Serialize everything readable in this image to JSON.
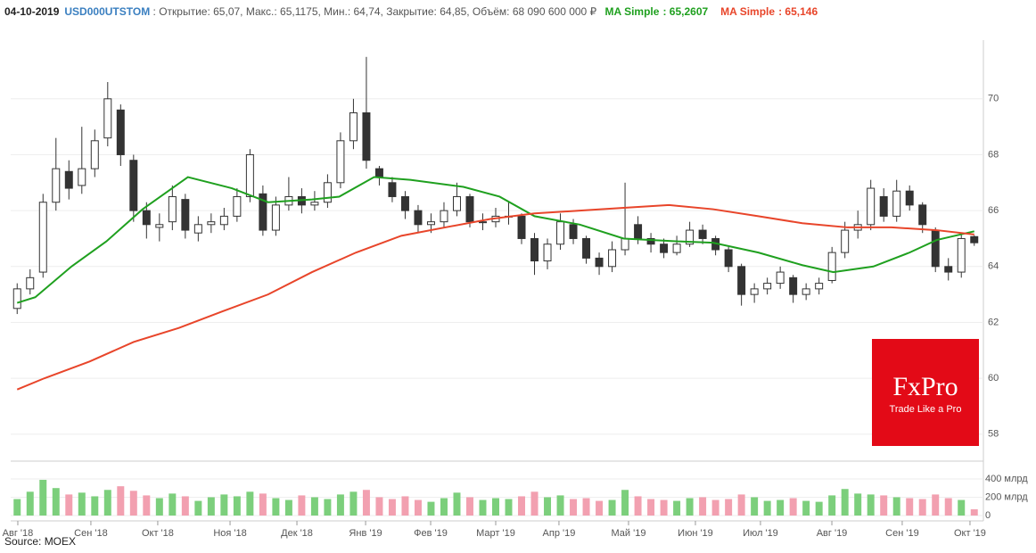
{
  "chart_data": {
    "type": "candlestick",
    "header": {
      "date": "04-10-2019",
      "ticker": "USD000UTSTOM",
      "info": ": Открытие: 65,07, Макс.: 65,1175, Мин.: 64,74, Закрытие: 64,85, Объём: 68 090 600 000 ₽"
    },
    "open": [
      62.5,
      63.2,
      63.8,
      66.3,
      67.4,
      66.9,
      67.5,
      68.6,
      69.6,
      67.8,
      66.0,
      65.4,
      65.6,
      66.4,
      65.2,
      65.5,
      65.5,
      65.8,
      66.5,
      66.6,
      65.3,
      66.2,
      66.5,
      66.2,
      66.3,
      67.0,
      68.5,
      69.5,
      67.5,
      67.0,
      66.5,
      66.0,
      65.5,
      65.6,
      66.0,
      66.5,
      65.6,
      65.6,
      65.8,
      65.8,
      65.0,
      64.2,
      64.8,
      65.5,
      65.0,
      64.3,
      64.0,
      64.6,
      65.5,
      65.0,
      64.8,
      64.5,
      64.8,
      65.3,
      65.0,
      64.6,
      64.0,
      63.0,
      63.2,
      63.4,
      63.6,
      63.0,
      63.2,
      63.5,
      64.5,
      65.3,
      65.5,
      66.5,
      65.8,
      66.7,
      66.2,
      65.3,
      64.0,
      63.8,
      65.07
    ],
    "high": [
      63.4,
      63.9,
      66.6,
      68.6,
      67.8,
      69.0,
      68.9,
      70.6,
      69.8,
      68.0,
      66.3,
      65.9,
      66.9,
      66.6,
      65.8,
      65.9,
      66.1,
      66.8,
      68.2,
      66.9,
      66.5,
      67.2,
      66.8,
      66.7,
      67.3,
      68.8,
      70.0,
      71.5,
      67.6,
      67.2,
      66.7,
      66.2,
      65.9,
      66.3,
      67.0,
      66.6,
      65.9,
      66.1,
      66.3,
      65.9,
      65.2,
      65.0,
      65.9,
      65.7,
      65.1,
      64.5,
      64.9,
      67.0,
      65.8,
      65.2,
      65.0,
      65.1,
      65.6,
      65.5,
      65.1,
      64.7,
      64.1,
      63.4,
      63.6,
      64.0,
      63.7,
      63.4,
      63.6,
      64.7,
      65.6,
      66.0,
      67.1,
      66.8,
      67.1,
      66.9,
      66.3,
      65.4,
      64.3,
      65.2,
      65.1175
    ],
    "low": [
      62.3,
      63.0,
      63.6,
      66.0,
      66.4,
      66.6,
      67.2,
      68.3,
      67.6,
      65.6,
      65.0,
      64.9,
      65.3,
      65.0,
      64.9,
      65.2,
      65.3,
      65.6,
      66.3,
      65.1,
      65.1,
      66.0,
      65.9,
      66.0,
      66.1,
      66.8,
      68.2,
      67.5,
      66.9,
      66.3,
      65.7,
      65.2,
      65.2,
      65.4,
      65.8,
      65.4,
      65.3,
      65.4,
      65.5,
      64.8,
      63.7,
      63.9,
      64.6,
      64.8,
      64.1,
      63.7,
      63.8,
      64.4,
      64.8,
      64.5,
      64.3,
      64.4,
      64.7,
      64.8,
      64.4,
      63.8,
      62.6,
      62.7,
      63.0,
      63.2,
      62.7,
      62.8,
      63.0,
      63.4,
      64.3,
      65.0,
      65.3,
      65.6,
      65.6,
      66.0,
      65.2,
      63.8,
      63.5,
      63.6,
      64.74
    ],
    "close": [
      63.2,
      63.6,
      66.3,
      67.5,
      66.8,
      67.5,
      68.5,
      70.0,
      68.0,
      66.0,
      65.5,
      65.5,
      66.5,
      65.3,
      65.5,
      65.6,
      65.8,
      66.5,
      68.0,
      65.3,
      66.2,
      66.5,
      66.2,
      66.3,
      67.0,
      68.5,
      69.5,
      67.8,
      67.2,
      66.5,
      66.0,
      65.5,
      65.6,
      66.0,
      66.5,
      65.6,
      65.6,
      65.8,
      65.8,
      65.0,
      64.2,
      64.8,
      65.6,
      65.0,
      64.3,
      64.0,
      64.6,
      65.0,
      65.0,
      64.8,
      64.5,
      64.8,
      65.3,
      65.0,
      64.6,
      64.0,
      63.0,
      63.2,
      63.4,
      63.8,
      63.0,
      63.2,
      63.4,
      64.5,
      65.3,
      65.5,
      66.8,
      65.8,
      66.7,
      66.2,
      65.5,
      64.0,
      63.8,
      65.0,
      64.85
    ],
    "volume": [
      180,
      260,
      390,
      300,
      230,
      250,
      210,
      280,
      320,
      270,
      220,
      190,
      240,
      210,
      160,
      200,
      230,
      210,
      260,
      240,
      190,
      170,
      220,
      200,
      180,
      230,
      260,
      280,
      200,
      180,
      210,
      170,
      150,
      190,
      250,
      200,
      170,
      190,
      180,
      210,
      260,
      200,
      220,
      180,
      190,
      160,
      170,
      280,
      210,
      180,
      170,
      160,
      190,
      200,
      170,
      180,
      230,
      200,
      160,
      170,
      190,
      160,
      150,
      220,
      290,
      240,
      230,
      220,
      200,
      190,
      180,
      230,
      190,
      170,
      68.09
    ],
    "xlim": [
      -0.5,
      74.5
    ],
    "xticks": [
      {
        "value": 0.05,
        "label": "Авг '18"
      },
      {
        "value": 5.7,
        "label": "Сен '18"
      },
      {
        "value": 10.87,
        "label": "Окт '18"
      },
      {
        "value": 16.46,
        "label": "Ноя '18"
      },
      {
        "value": 21.63,
        "label": "Дек '18"
      },
      {
        "value": 26.94,
        "label": "Янв '19"
      },
      {
        "value": 31.97,
        "label": "Фев '19"
      },
      {
        "value": 37.0,
        "label": "Март '19"
      },
      {
        "value": 41.89,
        "label": "Апр '19"
      },
      {
        "value": 47.27,
        "label": "Май '19"
      },
      {
        "value": 52.44,
        "label": "Июн '19"
      },
      {
        "value": 57.47,
        "label": "Июл '19"
      },
      {
        "value": 62.99,
        "label": "Авг '19"
      },
      {
        "value": 68.43,
        "label": "Сен '19"
      },
      {
        "value": 73.67,
        "label": "Окт '19"
      }
    ],
    "ylim": [
      57.1,
      72.1
    ],
    "yticks": [
      58,
      60,
      62,
      64,
      66,
      68,
      70
    ],
    "volume_ylim": [
      0,
      565
    ],
    "volume_yticks": [
      0,
      {
        "value": 200,
        "label": "200 млрд"
      },
      {
        "value": 400,
        "label": "400 млрд"
      }
    ],
    "grid": true,
    "up_color": "#7ccf7c",
    "down_color": "#f2a0b0",
    "candle_color": "#333333",
    "series": [
      {
        "name": "MA Simple",
        "legend_value": ": 65,2607",
        "color": "#1fa01f",
        "x": [
          0,
          1.4,
          4.2,
          6.9,
          9.7,
          13.2,
          16.6,
          19.4,
          22.8,
          24.9,
          27.6,
          30.4,
          34.5,
          37.3,
          40.0,
          43.5,
          46.9,
          51.1,
          53.8,
          57.3,
          60.7,
          63.1,
          66.2,
          69.0,
          71.1,
          74
        ],
        "values": [
          62.7,
          62.9,
          64.0,
          64.9,
          66.05,
          67.2,
          66.8,
          66.3,
          66.4,
          66.5,
          67.2,
          67.1,
          66.85,
          66.5,
          65.8,
          65.5,
          65.0,
          64.9,
          64.85,
          64.5,
          64.05,
          63.8,
          64.0,
          64.5,
          64.95,
          65.2607
        ]
      },
      {
        "name": "MA Simple",
        "legend_value": ": 65,146",
        "color": "#e8452a",
        "x": [
          0,
          2.1,
          5.6,
          9.0,
          12.5,
          15.9,
          19.4,
          22.8,
          26.2,
          29.7,
          33.1,
          36.6,
          40.0,
          43.5,
          46.9,
          50.4,
          53.8,
          57.3,
          60.7,
          64.2,
          67.6,
          71.1,
          74
        ],
        "values": [
          59.6,
          60.0,
          60.6,
          61.3,
          61.8,
          62.4,
          63.0,
          63.8,
          64.5,
          65.1,
          65.4,
          65.7,
          65.9,
          66.0,
          66.1,
          66.2,
          66.05,
          65.8,
          65.55,
          65.4,
          65.4,
          65.3,
          65.146
        ]
      }
    ],
    "logo": {
      "title": "FxPro",
      "tagline": "Trade Like a Pro"
    },
    "source": "Source: MOEX"
  }
}
